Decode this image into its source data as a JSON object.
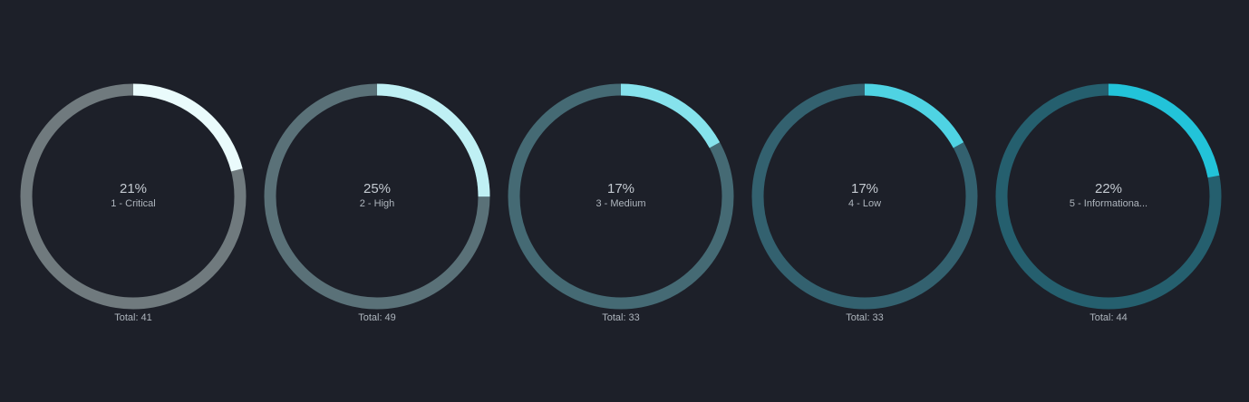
{
  "chart_data": [
    {
      "type": "gauge",
      "percent": 21,
      "percent_label": "21%",
      "label": "1 - Critical",
      "total_label": "Total: 41",
      "track_color": "#707a7e",
      "fill_color": "#eafbfc"
    },
    {
      "type": "gauge",
      "percent": 25,
      "percent_label": "25%",
      "label": "2 - High",
      "total_label": "Total: 49",
      "track_color": "#5a7178",
      "fill_color": "#bff0f4"
    },
    {
      "type": "gauge",
      "percent": 17,
      "percent_label": "17%",
      "label": "3 - Medium",
      "total_label": "Total: 33",
      "track_color": "#456a74",
      "fill_color": "#86e2ec"
    },
    {
      "type": "gauge",
      "percent": 17,
      "percent_label": "17%",
      "label": "4 - Low",
      "total_label": "Total: 33",
      "track_color": "#33616f",
      "fill_color": "#4fd3e3"
    },
    {
      "type": "gauge",
      "percent": 22,
      "percent_label": "22%",
      "label": "5 - Informationa...",
      "total_label": "Total: 44",
      "track_color": "#255f6e",
      "fill_color": "#22c3d9"
    }
  ]
}
